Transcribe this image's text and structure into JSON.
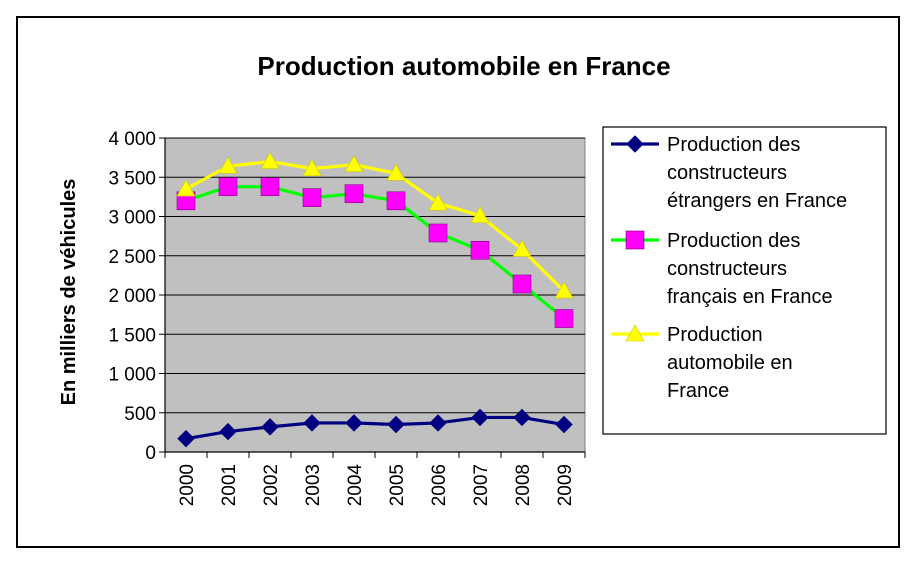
{
  "chart_data": {
    "type": "line",
    "title": "Production automobile en France",
    "xlabel": "",
    "ylabel": "En milliers de véhicules",
    "ylim": [
      0,
      4000
    ],
    "yticks": [
      0,
      500,
      1000,
      1500,
      2000,
      2500,
      3000,
      3500,
      4000
    ],
    "ytick_labels": [
      "0",
      "500",
      "1 000",
      "1 500",
      "2 000",
      "2 500",
      "3 000",
      "3 500",
      "4 000"
    ],
    "categories": [
      "2000",
      "2001",
      "2002",
      "2003",
      "2004",
      "2005",
      "2006",
      "2007",
      "2008",
      "2009"
    ],
    "grid": true,
    "legend_position": "right",
    "plot_background": "#c0c0c0",
    "series": [
      {
        "name": "Production des constructeurs étrangers en France",
        "legend_lines": [
          "Production des",
          "constructeurs",
          "étrangers en France"
        ],
        "color": "#000080",
        "marker": "diamond",
        "values": [
          170,
          260,
          320,
          370,
          370,
          350,
          370,
          440,
          440,
          350
        ]
      },
      {
        "name": "Production des constructeurs français en France",
        "legend_lines": [
          "Production des",
          "constructeurs",
          "français en France"
        ],
        "color": "#00ff00",
        "marker_color": "#ff00ff",
        "marker": "square",
        "values": [
          3200,
          3380,
          3380,
          3240,
          3290,
          3200,
          2790,
          2570,
          2140,
          1700
        ]
      },
      {
        "name": "Production automobile en France",
        "legend_lines": [
          "Production",
          "automobile en",
          "France"
        ],
        "color": "#ffff00",
        "marker": "triangle",
        "values": [
          3350,
          3640,
          3700,
          3610,
          3660,
          3550,
          3170,
          3010,
          2580,
          2050
        ]
      }
    ]
  }
}
